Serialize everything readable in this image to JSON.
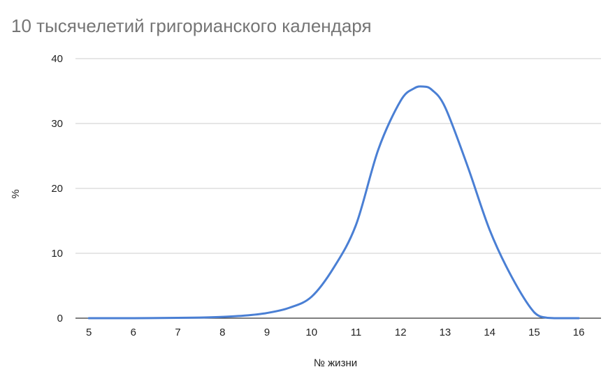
{
  "chart_data": {
    "type": "line",
    "title": "10 тысячелетий григорианского календаря",
    "xlabel": "№ жизни",
    "ylabel": "%",
    "xlim": [
      4.7,
      16.5
    ],
    "ylim": [
      0,
      40
    ],
    "x_ticks": [
      "5",
      "6",
      "7",
      "8",
      "9",
      "10",
      "11",
      "12",
      "13",
      "14",
      "15",
      "16"
    ],
    "y_ticks": [
      "0",
      "10",
      "20",
      "30",
      "40"
    ],
    "grid": "horizontal",
    "legend": "none",
    "colors": {
      "line": "#4a7fd4",
      "grid": "#cccccc",
      "title": "#757575"
    },
    "series": [
      {
        "x": [
          5,
          6,
          7,
          7.5,
          8,
          8.5,
          9,
          9.5,
          10,
          10.5,
          11,
          11.5,
          12,
          12.3,
          12.5,
          12.7,
          13,
          13.5,
          14,
          14.5,
          15,
          15.3,
          15.5,
          16
        ],
        "values": [
          0,
          0,
          0.05,
          0.1,
          0.2,
          0.4,
          0.8,
          1.6,
          3.3,
          7.8,
          14.4,
          26.0,
          33.5,
          35.4,
          35.7,
          35.2,
          32.5,
          23.5,
          13.6,
          6.3,
          0.9,
          0.05,
          0,
          0
        ]
      }
    ]
  }
}
